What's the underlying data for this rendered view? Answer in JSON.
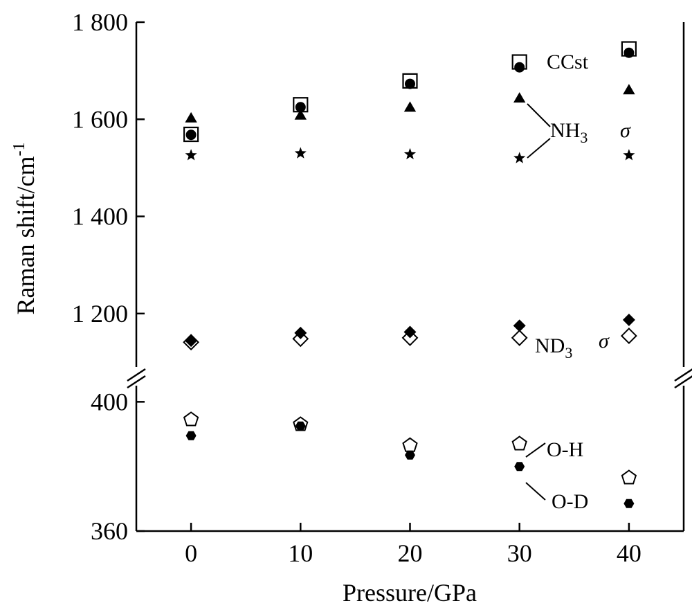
{
  "chart_data": {
    "type": "scatter",
    "title": "",
    "xlabel": "Pressure/GPa",
    "ylabel": "Raman shift/cm",
    "ylabel_superscript": "-1",
    "xlim": [
      -5,
      45
    ],
    "x_ticks": [
      0,
      10,
      20,
      30,
      40
    ],
    "x_tick_labels": [
      "0",
      "10",
      "20",
      "30",
      "40"
    ],
    "broken_y_axis": true,
    "upper_panel": {
      "ylim": [
        1090,
        1800
      ],
      "y_ticks": [
        1200,
        1400,
        1600,
        1800
      ],
      "y_tick_labels": [
        "1 200",
        "1 400",
        "1 600",
        "1 800"
      ]
    },
    "lower_panel": {
      "ylim": [
        360,
        405
      ],
      "y_ticks": [
        360,
        400
      ],
      "y_tick_labels": [
        "360",
        "400"
      ]
    },
    "series": [
      {
        "key": "ccst_open",
        "marker": "open-square",
        "panel": "upper",
        "x": [
          0,
          10,
          20,
          30,
          40
        ],
        "y": [
          1569,
          1630,
          1679,
          1718,
          1745
        ]
      },
      {
        "key": "ccst_filled",
        "marker": "filled-circle",
        "panel": "upper",
        "x": [
          0,
          10,
          20,
          30,
          40
        ],
        "y": [
          1568,
          1625,
          1673,
          1707,
          1737
        ]
      },
      {
        "key": "nh3_a",
        "marker": "filled-triangle",
        "panel": "upper",
        "x": [
          0,
          10,
          20,
          30,
          40
        ],
        "y": [
          1602,
          1608,
          1624,
          1643,
          1660
        ]
      },
      {
        "key": "nh3_b",
        "marker": "filled-star",
        "panel": "upper",
        "x": [
          0,
          10,
          20,
          30,
          40
        ],
        "y": [
          1526,
          1530,
          1528,
          1520,
          1526
        ]
      },
      {
        "key": "nd3_filled",
        "marker": "filled-diamond",
        "panel": "upper",
        "x": [
          0,
          10,
          20,
          30,
          40
        ],
        "y": [
          1144,
          1160,
          1162,
          1175,
          1187
        ]
      },
      {
        "key": "nd3_open",
        "marker": "open-diamond",
        "panel": "upper",
        "x": [
          0,
          10,
          20,
          30,
          40
        ],
        "y": [
          1141,
          1148,
          1150,
          1150,
          1154
        ]
      },
      {
        "key": "oh",
        "marker": "open-pentagon",
        "panel": "lower",
        "x": [
          0,
          10,
          20,
          30,
          40
        ],
        "y": [
          394.5,
          393,
          386.5,
          387,
          376.5
        ]
      },
      {
        "key": "od",
        "marker": "filled-hexagon",
        "panel": "lower",
        "x": [
          0,
          10,
          20,
          30,
          40
        ],
        "y": [
          389.5,
          392.5,
          383.5,
          380,
          368.5
        ]
      }
    ],
    "annotations": [
      {
        "id": "ccst",
        "text": "CCst"
      },
      {
        "id": "nh3",
        "text": "NH",
        "sub": "3"
      },
      {
        "id": "sigma-upper",
        "text": "σ"
      },
      {
        "id": "nd3",
        "text": "ND",
        "sub": "3"
      },
      {
        "id": "sigma-lower",
        "text": "σ"
      },
      {
        "id": "oh",
        "text": "O-H"
      },
      {
        "id": "od",
        "text": "O-D"
      }
    ]
  }
}
